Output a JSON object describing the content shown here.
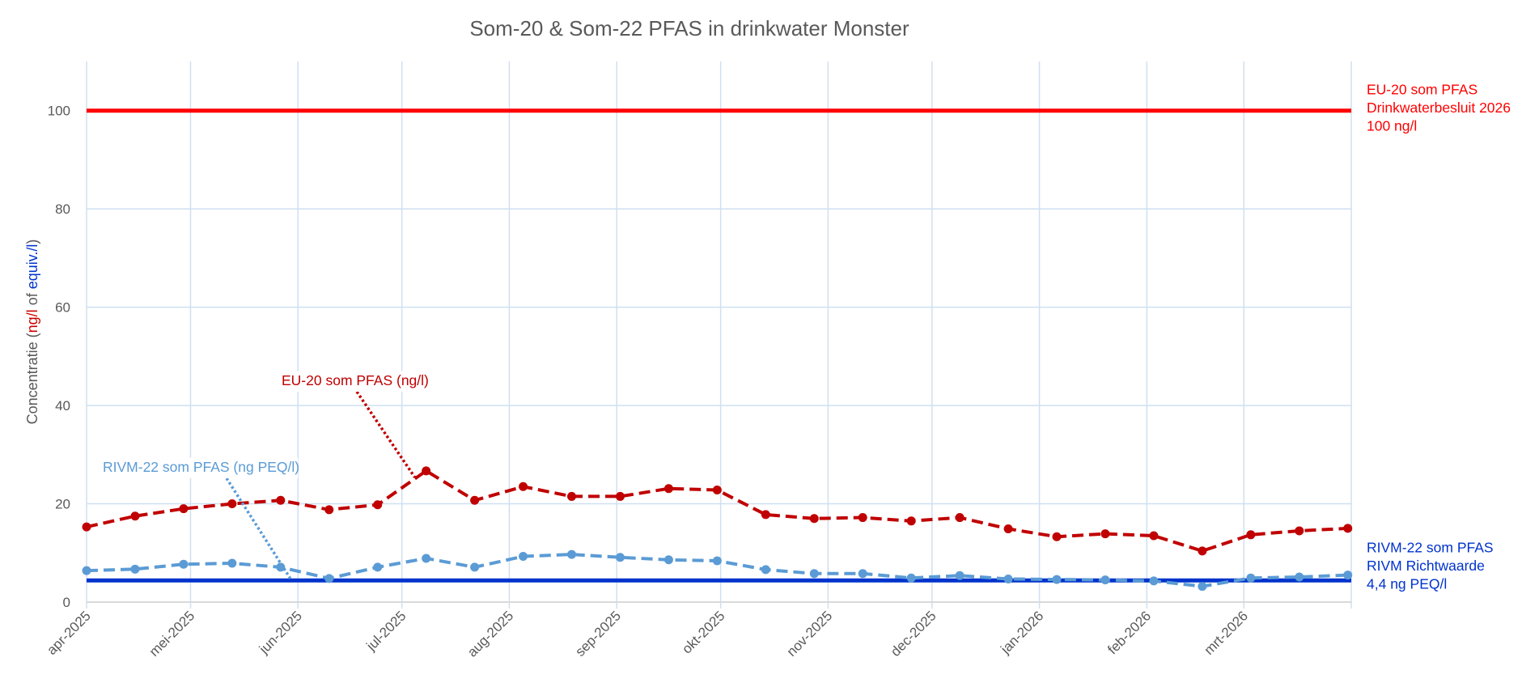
{
  "chart_data": {
    "type": "line",
    "title": "Som-20 & Som-22 PFAS in drinkwater Monster",
    "ylabel_parts": [
      {
        "text": "Concentratie (",
        "color": "#595959"
      },
      {
        "text": "ng/l",
        "color": "#cc0000"
      },
      {
        "text": " of ",
        "color": "#595959"
      },
      {
        "text": "equiv./l",
        "color": "#0033cc"
      },
      {
        "text": ")",
        "color": "#595959"
      }
    ],
    "ylim": [
      0,
      110
    ],
    "yticks": [
      0,
      20,
      40,
      60,
      80,
      100
    ],
    "xlim": [
      "2025-04-01",
      "2026-04-01"
    ],
    "xticks": [
      {
        "date": "2025-04-01",
        "label": "apr-2025"
      },
      {
        "date": "2025-05-01",
        "label": "mei-2025"
      },
      {
        "date": "2025-06-01",
        "label": "jun-2025"
      },
      {
        "date": "2025-07-01",
        "label": "jul-2025"
      },
      {
        "date": "2025-08-01",
        "label": "aug-2025"
      },
      {
        "date": "2025-09-01",
        "label": "sep-2025"
      },
      {
        "date": "2025-10-01",
        "label": "okt-2025"
      },
      {
        "date": "2025-11-01",
        "label": "nov-2025"
      },
      {
        "date": "2025-12-01",
        "label": "dec-2025"
      },
      {
        "date": "2026-01-01",
        "label": "jan-2026"
      },
      {
        "date": "2026-02-01",
        "label": "feb-2026"
      },
      {
        "date": "2026-03-01",
        "label": "mrt-2026"
      },
      {
        "date": "2026-04-01",
        "label": ""
      }
    ],
    "grid": true,
    "x": [
      "2025-04-01",
      "2025-04-15",
      "2025-04-29",
      "2025-05-13",
      "2025-05-27",
      "2025-06-10",
      "2025-06-24",
      "2025-07-08",
      "2025-07-22",
      "2025-08-05",
      "2025-08-19",
      "2025-09-02",
      "2025-09-16",
      "2025-09-30",
      "2025-10-14",
      "2025-10-28",
      "2025-11-11",
      "2025-11-25",
      "2025-12-09",
      "2025-12-23",
      "2026-01-06",
      "2026-01-20",
      "2026-02-03",
      "2026-02-17",
      "2026-03-03",
      "2026-03-17",
      "2026-03-31"
    ],
    "series": [
      {
        "name": "EU-20 som PFAS (ng/l)",
        "color": "#c00000",
        "style": "dashed-markers",
        "values": [
          15.3,
          17.5,
          19.0,
          20.0,
          20.7,
          18.8,
          19.8,
          26.7,
          20.7,
          23.5,
          21.5,
          21.5,
          23.1,
          22.8,
          17.8,
          17.0,
          17.2,
          16.5,
          17.2,
          14.9,
          13.3,
          13.9,
          13.5,
          10.4,
          13.7,
          14.5,
          15.0
        ]
      },
      {
        "name": "RIVM-22 som PFAS (ng PEQ/l)",
        "color": "#5b9bd5",
        "style": "dashed-markers",
        "values": [
          6.4,
          6.7,
          7.7,
          7.9,
          7.1,
          4.8,
          7.1,
          8.9,
          7.1,
          9.3,
          9.7,
          9.1,
          8.6,
          8.4,
          6.6,
          5.8,
          5.8,
          4.9,
          5.4,
          4.7,
          4.6,
          4.5,
          4.3,
          3.2,
          4.9,
          5.1,
          5.5
        ]
      }
    ],
    "reference_lines": [
      {
        "value": 100,
        "color": "#ff0000",
        "label_lines": [
          "EU-20 som PFAS",
          "Drinkwaterbesluit 2026",
          "100 ng/l"
        ]
      },
      {
        "value": 4.4,
        "color": "#0033cc",
        "label_lines": [
          "RIVM-22 som PFAS",
          "RIVM Richtwaarde",
          "4,4 ng PEQ/l"
        ]
      }
    ],
    "annotations": [
      {
        "text": "EU-20 som PFAS (ng/l)",
        "color": "#c00000",
        "target_index": 7,
        "series": 0
      },
      {
        "text": "RIVM-22 som PFAS (ng PEQ/l)",
        "color": "#5b9bd5",
        "target_index": 4,
        "series": 1
      }
    ]
  }
}
